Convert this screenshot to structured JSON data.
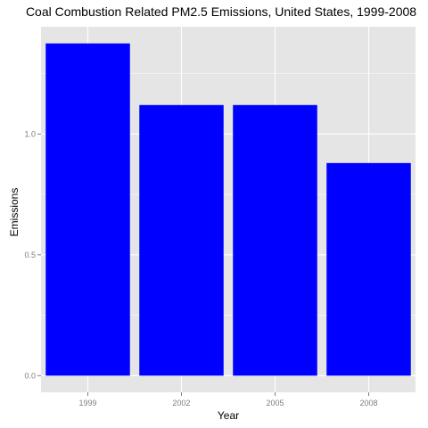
{
  "chart_data": {
    "type": "bar",
    "title": "Coal Combustion Related PM2.5 Emissions, United States, 1999-2008",
    "xlabel": "Year",
    "ylabel": "Emissions",
    "categories": [
      "1999",
      "2002",
      "2005",
      "2008"
    ],
    "values": [
      1.375,
      1.12,
      1.12,
      0.88
    ],
    "ylim": [
      -0.069,
      1.444
    ],
    "yticks": [
      0.0,
      0.5,
      1.0
    ],
    "ytick_labels": [
      "0.0",
      "0.5",
      "1.0"
    ],
    "bar_color": "#0000ff",
    "panel_background": "#e5e5e5",
    "grid": true,
    "grid_color": "#ffffff",
    "legend": "none"
  }
}
